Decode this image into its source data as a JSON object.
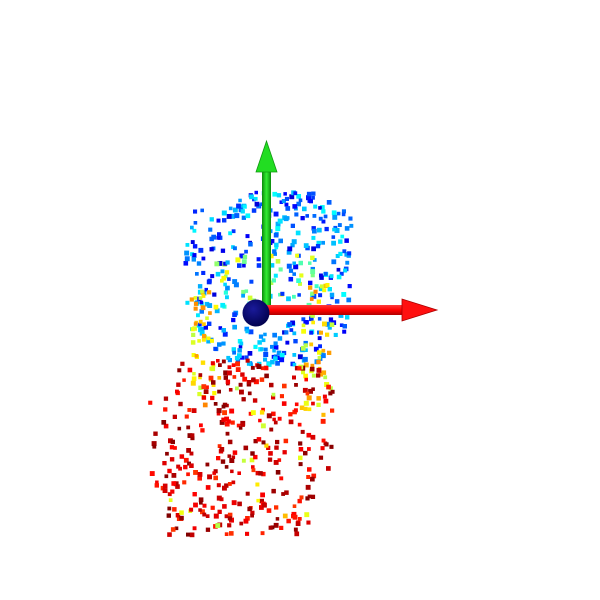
{
  "scene": {
    "background": "#ffffff",
    "colormap": "jet",
    "colormap_stops": [
      "#00008f",
      "#0000ff",
      "#0080ff",
      "#00ffff",
      "#80ff80",
      "#ffff00",
      "#ff8000",
      "#ff0000",
      "#800000"
    ],
    "axes": {
      "x": {
        "color": "#ff0000",
        "icon": "red-arrow"
      },
      "y": {
        "color": "#00cc00",
        "icon": "green-arrow"
      }
    },
    "origin": {
      "color": "#000066",
      "icon": "origin-sphere"
    },
    "point_cloud": {
      "shape": "square",
      "colored_by": "depth"
    }
  }
}
